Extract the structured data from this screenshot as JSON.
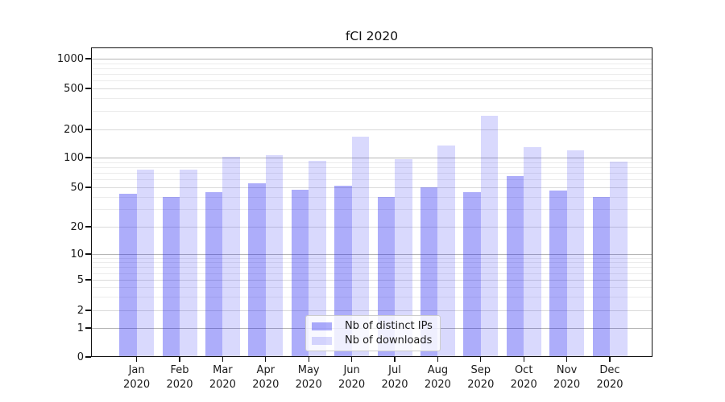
{
  "chart_data": {
    "type": "bar",
    "title": "fCI 2020",
    "categories": [
      "Jan",
      "Feb",
      "Mar",
      "Apr",
      "May",
      "Jun",
      "Jul",
      "Aug",
      "Sep",
      "Oct",
      "Nov",
      "Dec"
    ],
    "x_year_label": "2020",
    "series": [
      {
        "name": "Nb of distinct IPs",
        "color": "rgba(20,20,240,0.35)",
        "values": [
          43,
          40,
          45,
          55,
          47,
          52,
          40,
          50,
          45,
          65,
          46,
          40
        ]
      },
      {
        "name": "Nb of downloads",
        "color": "rgba(20,20,240,0.16)",
        "values": [
          75,
          75,
          102,
          107,
          93,
          167,
          97,
          135,
          270,
          129,
          119,
          91
        ]
      }
    ],
    "xlabel": "",
    "ylabel": "",
    "yscale": "symlog",
    "yticks": [
      0,
      1,
      2,
      5,
      10,
      20,
      50,
      100,
      200,
      500,
      1000
    ],
    "ylim": [
      0,
      1300
    ],
    "grid": "on",
    "legend_position": "lower center (inset)"
  },
  "colors": {
    "grid_major": "#b6b6b6",
    "grid_mid": "#d9d9d9",
    "grid_minor": "#ececec",
    "text": "#1a1a1a"
  }
}
